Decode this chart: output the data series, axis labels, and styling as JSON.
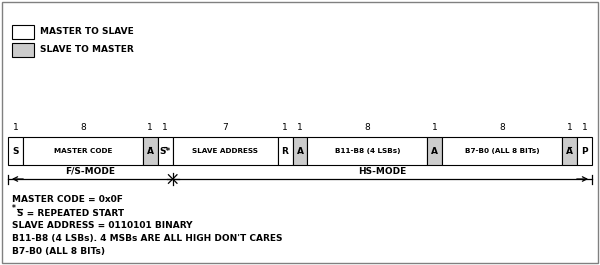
{
  "bg_color": "#ffffff",
  "border_color": "#000000",
  "white_fill": "#ffffff",
  "gray_fill": "#cccccc",
  "legend": [
    {
      "label": "MASTER TO SLAVE",
      "fill": "#ffffff"
    },
    {
      "label": "SLAVE TO MASTER",
      "fill": "#cccccc"
    }
  ],
  "bit_counts": [
    "1",
    "8",
    "1",
    "1",
    "7",
    "1",
    "1",
    "8",
    "1",
    "8",
    "1",
    "1"
  ],
  "cells": [
    {
      "label": "S",
      "fill": "#ffffff",
      "weight": 1
    },
    {
      "label": "MASTER CODE",
      "fill": "#ffffff",
      "weight": 8
    },
    {
      "label": "A",
      "fill": "#cccccc",
      "weight": 1,
      "overline": true
    },
    {
      "label": "S*",
      "fill": "#ffffff",
      "weight": 1,
      "overline": true
    },
    {
      "label": "SLAVE ADDRESS",
      "fill": "#ffffff",
      "weight": 7
    },
    {
      "label": "R",
      "fill": "#ffffff",
      "weight": 1
    },
    {
      "label": "A",
      "fill": "#cccccc",
      "weight": 1
    },
    {
      "label": "B11-B8 (4 LSBs)",
      "fill": "#ffffff",
      "weight": 8
    },
    {
      "label": "A",
      "fill": "#cccccc",
      "weight": 1
    },
    {
      "label": "B7-B0 (ALL 8 BITs)",
      "fill": "#ffffff",
      "weight": 8
    },
    {
      "label": "A",
      "fill": "#cccccc",
      "weight": 1,
      "overline": true
    },
    {
      "label": "P",
      "fill": "#ffffff",
      "weight": 1
    }
  ],
  "fs_mode_label": "F/S-MODE",
  "hs_mode_label": "HS-MODE",
  "ann_line1": "MASTER CODE = 0x0F",
  "ann_line2a": "*",
  "ann_line2b": "S = REPEATED START",
  "ann_line3": "SLAVE ADDRESS = 0110101 BINARY",
  "ann_line4": "B11-B8 (4 LSBs). 4 MSBs ARE ALL HIGH DON'T CARES",
  "ann_line5": "B7-B0 (ALL 8 BITs)"
}
